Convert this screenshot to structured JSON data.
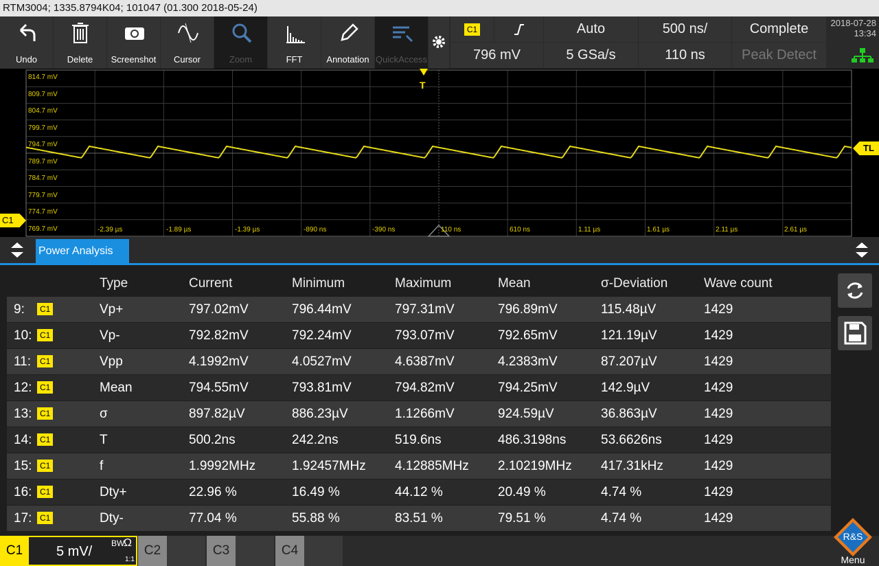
{
  "title_bar": "RTM3004; 1335.8794K04; 101047 (01.300 2018-05-24)",
  "toolbar": [
    "Undo",
    "Delete",
    "Screenshot",
    "Cursor",
    "Zoom",
    "FFT",
    "Annotation",
    "QuickAccess"
  ],
  "trigger": {
    "channel": "C1",
    "level": "796 mV",
    "mode": "Auto",
    "sample_rate": "5 GSa/s",
    "timebase": "500 ns/",
    "position": "110 ns",
    "acquisition": "Complete",
    "acquisition_mode": "Peak Detect"
  },
  "datetime": {
    "date": "2018-07-28",
    "time": "13:34"
  },
  "display": {
    "y_labels": [
      "814.7 mV",
      "809.7 mV",
      "804.7 mV",
      "799.7 mV",
      "794.7 mV",
      "789.7 mV",
      "784.7 mV",
      "779.7 mV",
      "774.7 mV",
      "769.7 mV"
    ],
    "x_labels": [
      "-2.39 µs",
      "-1.89 µs",
      "-1.39 µs",
      "-890 ns",
      "-390 ns",
      "110 ns",
      "610 ns",
      "1.11 µs",
      "1.61 µs",
      "2.11 µs",
      "2.61 µs"
    ],
    "trigger_marker": "T",
    "level_marker": "TL",
    "channel_marker": "C1"
  },
  "panel": {
    "tab": "Power Analysis",
    "columns": [
      "Type",
      "Current",
      "Minimum",
      "Maximum",
      "Mean",
      "σ-Deviation",
      "Wave count"
    ],
    "rows": [
      [
        "9:",
        "C1",
        "Vp+",
        "797.02mV",
        "796.44mV",
        "797.31mV",
        "796.89mV",
        "115.48µV",
        "1429"
      ],
      [
        "10:",
        "C1",
        "Vp-",
        "792.82mV",
        "792.24mV",
        "793.07mV",
        "792.65mV",
        "121.19µV",
        "1429"
      ],
      [
        "11:",
        "C1",
        "Vpp",
        "4.1992mV",
        "4.0527mV",
        "4.6387mV",
        "4.2383mV",
        "87.207µV",
        "1429"
      ],
      [
        "12:",
        "C1",
        "Mean",
        "794.55mV",
        "793.81mV",
        "794.82mV",
        "794.25mV",
        "142.9µV",
        "1429"
      ],
      [
        "13:",
        "C1",
        "σ",
        "897.82µV",
        "886.23µV",
        "1.1266mV",
        "924.59µV",
        "36.863µV",
        "1429"
      ],
      [
        "14:",
        "C1",
        "T",
        "500.2ns",
        "242.2ns",
        "519.6ns",
        "486.3198ns",
        "53.6626ns",
        "1429"
      ],
      [
        "15:",
        "C1",
        "f",
        "1.9992MHz",
        "1.92457MHz",
        "4.12885MHz",
        "2.10219MHz",
        "417.31kHz",
        "1429"
      ],
      [
        "16:",
        "C1",
        "Dty+",
        "22.96 %",
        "16.49 %",
        "44.12 %",
        "20.49 %",
        "4.74 %",
        "1429"
      ],
      [
        "17:",
        "C1",
        "Dty-",
        "77.04 %",
        "55.88 %",
        "83.51 %",
        "79.51 %",
        "4.74 %",
        "1429"
      ]
    ]
  },
  "channels": {
    "c1": {
      "name": "C1",
      "scale": "5 mV/",
      "bandwidth": "BW",
      "impedance": "Ω",
      "probe": "1:1"
    },
    "c2": {
      "name": "C2"
    },
    "c3": {
      "name": "C3"
    },
    "c4": {
      "name": "C4"
    }
  },
  "menu": "Menu"
}
